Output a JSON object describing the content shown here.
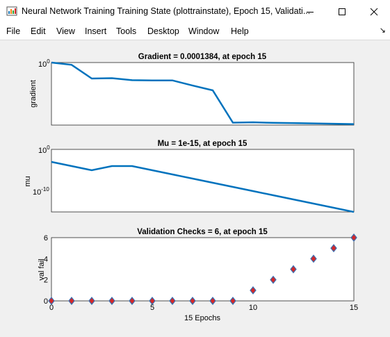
{
  "window": {
    "title": "Neural Network Training Training State (plottrainstate), Epoch 15, Validati..."
  },
  "menu": {
    "items": [
      "File",
      "Edit",
      "View",
      "Insert",
      "Tools",
      "Desktop",
      "Window",
      "Help"
    ]
  },
  "colors": {
    "line": "#0072bd",
    "marker_fill": "#d62728",
    "marker_edge": "#3a6fb0"
  },
  "chart_data": [
    {
      "type": "line",
      "title": "Gradient = 0.0001384, at epoch 15",
      "ylabel": "gradient",
      "yscale": "log",
      "ytick_label": {
        "base": "10",
        "exp": "0"
      },
      "ylim": [
        0.00012,
        1.0
      ],
      "xlim": [
        0,
        15
      ],
      "x": [
        0,
        1,
        2,
        3,
        4,
        5,
        6,
        7,
        8,
        9,
        10,
        11,
        12,
        13,
        14,
        15
      ],
      "values": [
        1.0,
        0.72,
        0.1,
        0.105,
        0.078,
        0.075,
        0.076,
        0.036,
        0.018,
        0.00017,
        0.00018,
        0.000165,
        0.00016,
        0.000152,
        0.000145,
        0.0001384
      ]
    },
    {
      "type": "line",
      "title": "Mu = 1e-15, at epoch 15",
      "ylabel": "mu",
      "yscale": "log",
      "ytick_labels": [
        {
          "base": "10",
          "exp": "0"
        },
        {
          "base": "10",
          "exp": "-10"
        }
      ],
      "ylim_exp": [
        -15,
        0
      ],
      "xlim": [
        0,
        15
      ],
      "x": [
        0,
        1,
        2,
        3,
        4,
        5,
        6,
        7,
        8,
        9,
        10,
        11,
        12,
        13,
        14,
        15
      ],
      "values_exp": [
        -3,
        -4,
        -5,
        -4,
        -4,
        -5,
        -6,
        -7,
        -8,
        -9,
        -10,
        -11,
        -12,
        -13,
        -14,
        -15
      ]
    },
    {
      "type": "scatter",
      "title": "Validation Checks = 6, at epoch 15",
      "xlabel": "15 Epochs",
      "ylabel": "val fail",
      "ylim": [
        0,
        6
      ],
      "xlim": [
        0,
        15
      ],
      "yticks": [
        "0",
        "2",
        "4",
        "6"
      ],
      "xticks": [
        "0",
        "5",
        "10",
        "15"
      ],
      "x": [
        0,
        1,
        2,
        3,
        4,
        5,
        6,
        7,
        8,
        9,
        10,
        11,
        12,
        13,
        14,
        15
      ],
      "values": [
        0,
        0,
        0,
        0,
        0,
        0,
        0,
        0,
        0,
        0,
        1,
        2,
        3,
        4,
        5,
        6
      ]
    }
  ]
}
